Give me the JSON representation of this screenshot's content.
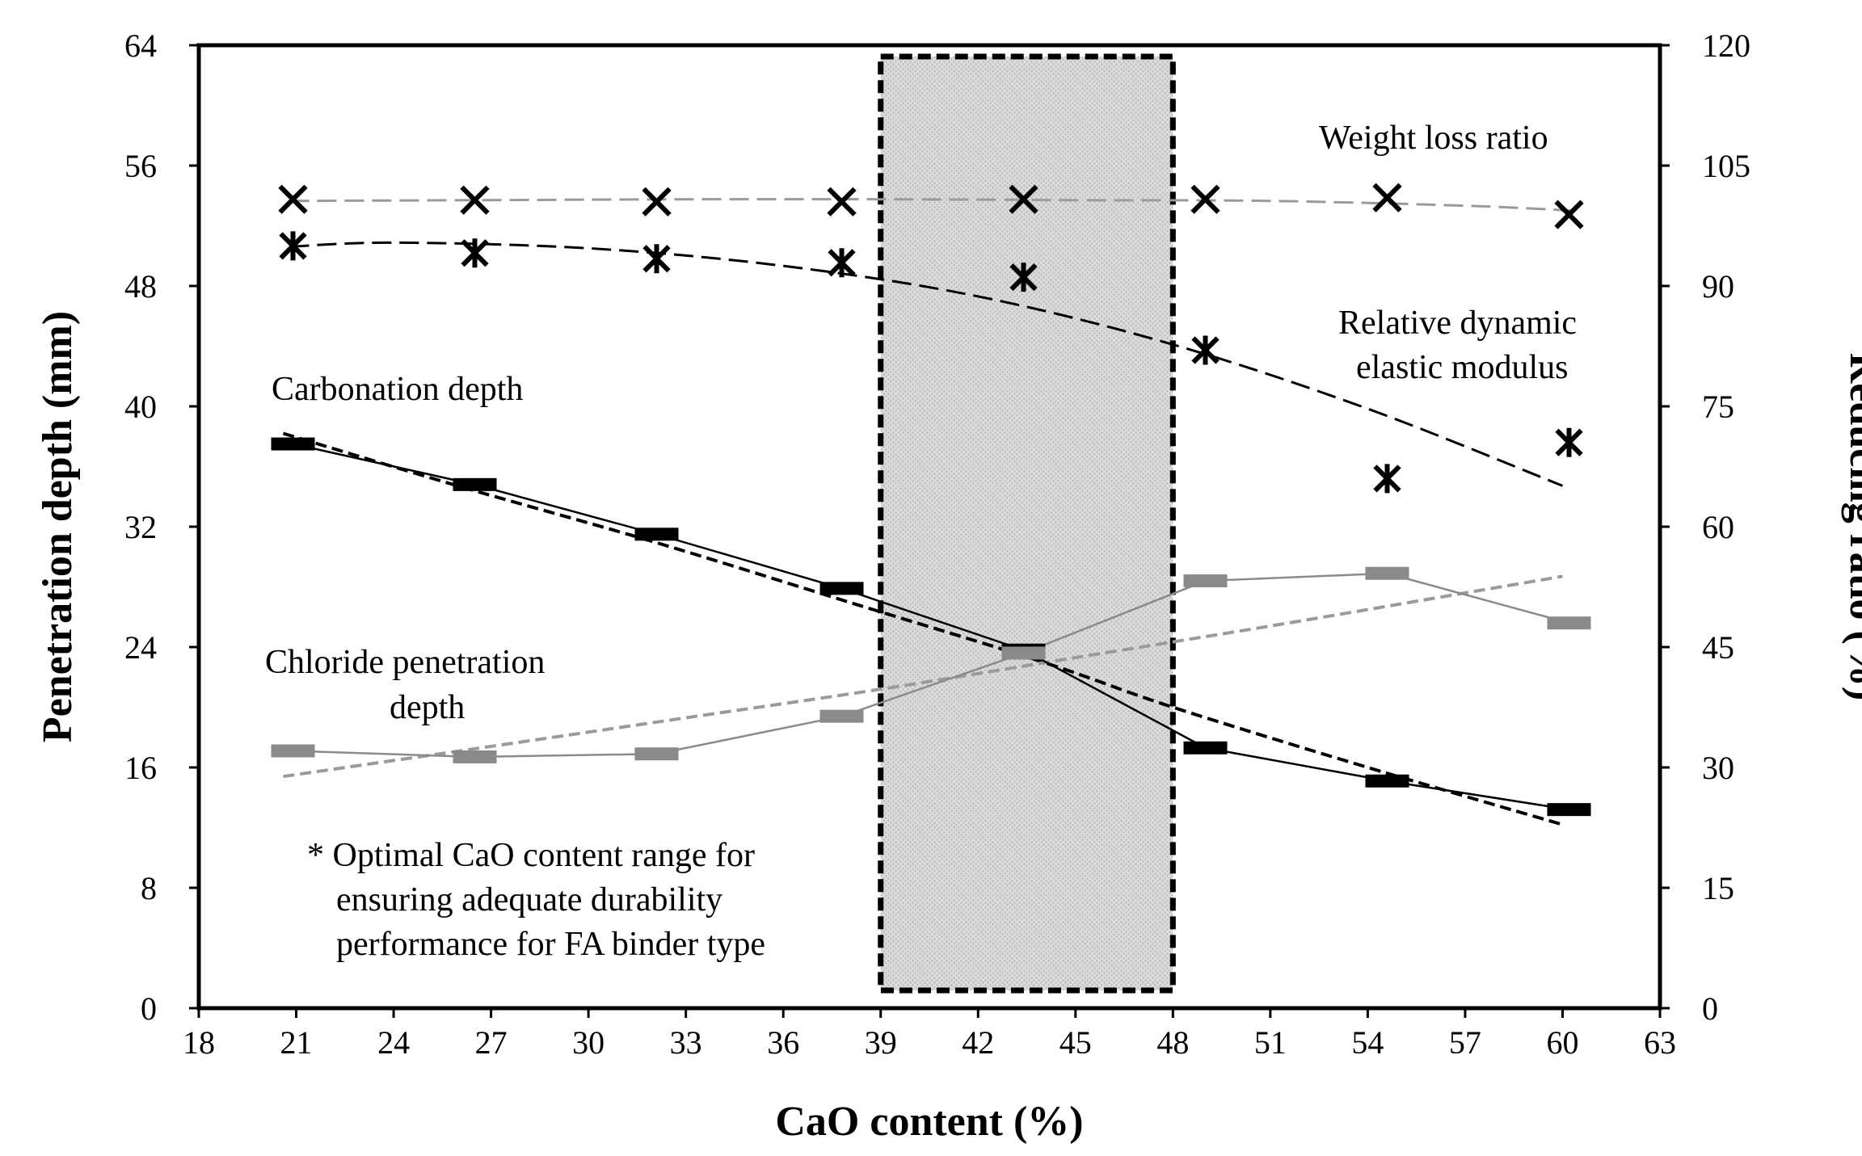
{
  "chart_data": {
    "type": "line",
    "xlabel": "CaO content (%)",
    "ylabel": "Penetration depth (mm)",
    "y2label": "Reducing ratio (%)",
    "xlim": [
      18,
      63
    ],
    "ylim": [
      0,
      64
    ],
    "y2lim": [
      0,
      120
    ],
    "xticks": [
      "18",
      "21",
      "24",
      "27",
      "30",
      "33",
      "36",
      "39",
      "42",
      "45",
      "48",
      "51",
      "54",
      "57",
      "60",
      "63"
    ],
    "yticks": [
      "0",
      "8",
      "16",
      "24",
      "32",
      "40",
      "48",
      "56",
      "64"
    ],
    "y2ticks": [
      "0",
      "15",
      "30",
      "45",
      "60",
      "75",
      "90",
      "105",
      "120"
    ],
    "optimal_range": [
      39,
      48
    ],
    "series": [
      {
        "name": "Carbonation depth",
        "axis": "left",
        "marker": "dash-black",
        "x": [
          20.9,
          26.5,
          32.1,
          37.8,
          43.4,
          49.0,
          54.6,
          60.2
        ],
        "values": [
          37.5,
          34.8,
          31.5,
          27.9,
          23.8,
          17.3,
          15.1,
          13.2
        ]
      },
      {
        "name": "Chloride penetration depth",
        "axis": "left",
        "marker": "dash-gray",
        "x": [
          20.9,
          26.5,
          32.1,
          37.8,
          43.4,
          49.0,
          54.6,
          60.2
        ],
        "values": [
          17.1,
          16.7,
          16.9,
          19.4,
          23.6,
          28.4,
          28.9,
          25.6
        ]
      },
      {
        "name": "Weight loss ratio",
        "axis": "right",
        "marker": "x",
        "x": [
          20.9,
          26.5,
          32.1,
          37.8,
          43.4,
          49.0,
          54.6,
          60.2
        ],
        "values": [
          100.8,
          100.7,
          100.5,
          100.5,
          100.8,
          100.8,
          101.0,
          98.9
        ]
      },
      {
        "name": "Relative dynamic elastic modulus",
        "axis": "right",
        "marker": "asterisk",
        "x": [
          20.9,
          26.5,
          32.1,
          37.8,
          43.4,
          49.0,
          54.6,
          60.2
        ],
        "values": [
          95.0,
          94.1,
          93.4,
          92.9,
          91.1,
          82.0,
          66.0,
          70.5
        ]
      }
    ],
    "trendlines": [
      {
        "of": "Carbonation depth",
        "axis": "left",
        "x": [
          20.6,
          26.0,
          32.0,
          38.0,
          44.0,
          48.0,
          54.0,
          60.0
        ],
        "values": [
          38.2,
          34.7,
          31.0,
          27.0,
          23.0,
          20.0,
          16.0,
          12.2
        ]
      },
      {
        "of": "Chloride penetration depth",
        "axis": "left",
        "x": [
          20.6,
          27.0,
          33.0,
          39.0,
          45.0,
          51.0,
          57.0,
          60.0
        ],
        "values": [
          15.4,
          17.4,
          19.3,
          21.2,
          23.3,
          25.4,
          27.6,
          28.7
        ]
      },
      {
        "of": "Weight loss ratio",
        "axis": "right",
        "x": [
          20.8,
          27.0,
          33.0,
          39.0,
          45.0,
          51.0,
          57.0,
          60.3
        ],
        "values": [
          100.6,
          100.7,
          100.8,
          100.8,
          100.7,
          100.6,
          100.0,
          99.4
        ]
      },
      {
        "of": "Relative dynamic elastic modulus",
        "axis": "right",
        "x": [
          20.8,
          24.0,
          30.0,
          36.0,
          42.0,
          48.0,
          54.0,
          60.0
        ],
        "values": [
          94.9,
          95.4,
          94.7,
          92.5,
          88.7,
          82.7,
          74.7,
          65.1
        ]
      }
    ],
    "labels": {
      "weight_loss": "Weight loss ratio",
      "rdem_line1": "Relative dynamic",
      "rdem_line2": "elastic modulus",
      "carbonation": "Carbonation depth",
      "chloride_line1": "Chloride penetration",
      "chloride_line2": "depth"
    },
    "note": {
      "line1": "* Optimal CaO content range for",
      "line2": "ensuring adequate durability",
      "line3": "performance for FA binder type"
    }
  },
  "colors": {
    "black": "#000000",
    "gray_series": "#8a8a8a",
    "gray_trend": "#9a9a9a",
    "box_fill": "#d3d3d3"
  }
}
